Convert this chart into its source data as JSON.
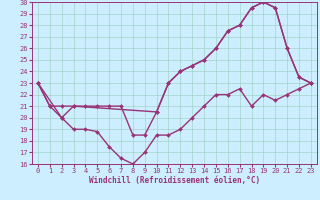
{
  "xlabel": "Windchill (Refroidissement éolien,°C)",
  "bg_color": "#cceeff",
  "line_color": "#993377",
  "grid_color": "#99ccbb",
  "xlim": [
    -0.5,
    23.5
  ],
  "ylim": [
    16,
    30
  ],
  "yticks": [
    16,
    17,
    18,
    19,
    20,
    21,
    22,
    23,
    24,
    25,
    26,
    27,
    28,
    29,
    30
  ],
  "xticks": [
    0,
    1,
    2,
    3,
    4,
    5,
    6,
    7,
    8,
    9,
    10,
    11,
    12,
    13,
    14,
    15,
    16,
    17,
    18,
    19,
    20,
    21,
    22,
    23
  ],
  "line1_x": [
    0,
    1,
    2,
    3,
    4,
    5,
    6,
    7,
    8,
    9,
    10,
    11,
    12,
    13,
    14,
    15,
    16,
    17,
    18,
    19,
    20,
    21,
    22,
    23
  ],
  "line1_y": [
    23,
    21,
    21,
    21,
    21,
    21,
    21,
    21,
    18.5,
    18.5,
    20.5,
    23,
    24,
    24.5,
    25,
    26,
    27.5,
    28,
    29.5,
    30,
    29.5,
    26,
    23.5,
    23
  ],
  "line2_x": [
    0,
    1,
    2,
    3,
    4,
    5,
    6,
    7,
    8,
    9,
    10,
    11,
    12,
    13,
    14,
    15,
    16,
    17,
    18,
    19,
    20,
    21,
    22,
    23
  ],
  "line2_y": [
    23,
    21,
    20,
    19,
    19,
    18.8,
    17.5,
    16.5,
    16,
    17,
    18.5,
    18.5,
    19,
    20,
    21,
    22,
    22,
    22.5,
    21,
    22,
    21.5,
    22,
    22.5,
    23
  ],
  "line3_x": [
    0,
    2,
    3,
    10,
    11,
    12,
    13,
    14,
    15,
    16,
    17,
    18,
    19,
    20,
    21,
    22,
    23
  ],
  "line3_y": [
    23,
    20,
    21,
    20.5,
    23,
    24,
    24.5,
    25,
    26,
    27.5,
    28,
    29.5,
    30,
    29.5,
    26,
    23.5,
    23
  ],
  "marker": "D",
  "markersize": 2,
  "linewidth": 1.0,
  "tick_fontsize": 5,
  "xlabel_fontsize": 5.5
}
